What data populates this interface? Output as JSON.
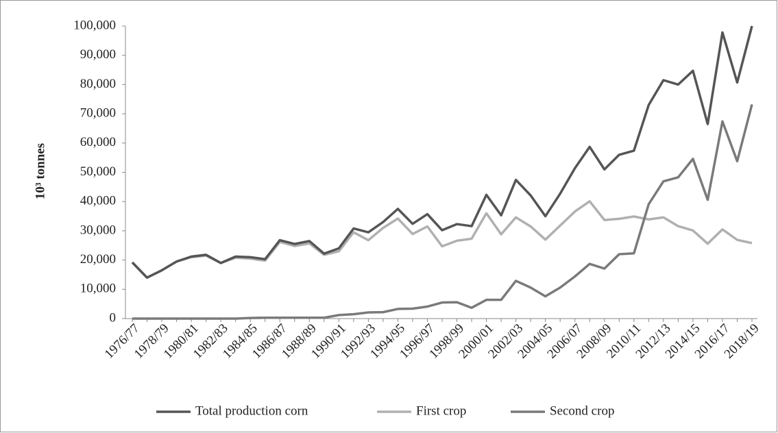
{
  "chart_data": {
    "type": "line",
    "y_label": "10³ tonnes",
    "categories": [
      "1976/77",
      null,
      "1978/79",
      null,
      "1980/81",
      null,
      "1982/83",
      null,
      "1984/85",
      null,
      "1986/87",
      null,
      "1988/89",
      null,
      "1990/91",
      null,
      "1992/93",
      null,
      "1994/95",
      null,
      "1996/97",
      null,
      "1998/99",
      null,
      "2000/01",
      null,
      "2002/03",
      null,
      "2004/05",
      null,
      "2006/07",
      null,
      "2008/09",
      null,
      "2010/11",
      null,
      "2012/13",
      null,
      "2014/15",
      null,
      "2016/17",
      null,
      "2018/19"
    ],
    "series": [
      {
        "name": "Total production corn",
        "color": "#555555",
        "values": [
          19200,
          14000,
          16500,
          19500,
          21200,
          21800,
          19000,
          21200,
          21000,
          20300,
          26800,
          25500,
          26500,
          22200,
          24000,
          30800,
          29500,
          33000,
          37500,
          32400,
          35700,
          30200,
          32300,
          31600,
          42300,
          35300,
          47400,
          42100,
          35000,
          42700,
          51400,
          58700,
          51000,
          56000,
          57400,
          73000,
          81500,
          80000,
          84700,
          66500,
          97800,
          80700,
          100000
        ]
      },
      {
        "name": "First crop",
        "color": "#b0b0b0",
        "values": [
          19200,
          14000,
          16500,
          19500,
          21000,
          21500,
          19000,
          20800,
          20500,
          19800,
          26200,
          24800,
          25700,
          21800,
          23000,
          29500,
          26800,
          31000,
          34200,
          28900,
          31500,
          24700,
          26600,
          27300,
          36000,
          28800,
          34600,
          31500,
          27000,
          31800,
          36600,
          40100,
          33700,
          34100,
          34900,
          33900,
          34600,
          31600,
          30100,
          25600,
          30500,
          26900,
          25800
        ]
      },
      {
        "name": "Second crop",
        "color": "#7a7a7a",
        "values": [
          0,
          0,
          0,
          0,
          0,
          0,
          0,
          0,
          200,
          300,
          300,
          300,
          300,
          300,
          1200,
          1500,
          2100,
          2200,
          3300,
          3400,
          4100,
          5500,
          5600,
          3700,
          6400,
          6400,
          12900,
          10600,
          7600,
          10600,
          14400,
          18700,
          17100,
          22000,
          22300,
          39100,
          46900,
          48300,
          54600,
          40600,
          67400,
          53800,
          73200
        ]
      }
    ],
    "ylim": [
      0,
      100000
    ],
    "yticks": [
      0,
      {
        "value": 10000,
        "label": "10,000"
      },
      {
        "value": 20000,
        "label": "20,000"
      },
      {
        "value": 30000,
        "label": "30,000"
      },
      {
        "value": 40000,
        "label": "40,000"
      },
      {
        "value": 50000,
        "label": "50,000"
      },
      {
        "value": 60000,
        "label": "60,000"
      },
      {
        "value": 70000,
        "label": "70,000"
      },
      {
        "value": 80000,
        "label": "80,000"
      },
      {
        "value": 90000,
        "label": "90,000"
      },
      {
        "value": 100000,
        "label": "100,000"
      }
    ],
    "legend": "bottom"
  }
}
